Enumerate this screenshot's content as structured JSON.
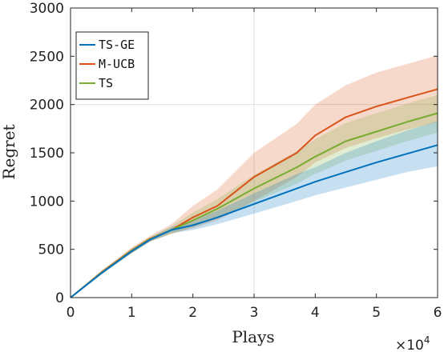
{
  "chart_data": {
    "type": "line",
    "xlabel": "Plays",
    "ylabel": "Regret",
    "x_multiplier": "×10",
    "x_multiplier_exp": "4",
    "xlim": [
      0,
      6
    ],
    "ylim": [
      0,
      3000
    ],
    "xticks": [
      0,
      1,
      2,
      3,
      4,
      5,
      6
    ],
    "yticks": [
      0,
      500,
      1000,
      1500,
      2000,
      2500,
      3000
    ],
    "grid": "partial",
    "legend_position": "top-left",
    "x": [
      0,
      0.5,
      1,
      1.3,
      1.65,
      2,
      2.4,
      3,
      3.7,
      4,
      4.5,
      5,
      5.5,
      6
    ],
    "series": [
      {
        "name": "TS-GE",
        "color": "#0072BD",
        "values": [
          0,
          250,
          480,
          600,
          700,
          750,
          830,
          970,
          1130,
          1200,
          1300,
          1400,
          1490,
          1580
        ],
        "upper": [
          0,
          260,
          500,
          620,
          730,
          800,
          900,
          1080,
          1280,
          1350,
          1500,
          1620,
          1730,
          1830
        ],
        "lower": [
          0,
          240,
          460,
          580,
          670,
          700,
          760,
          870,
          1000,
          1060,
          1140,
          1220,
          1300,
          1360
        ]
      },
      {
        "name": "M-UCB",
        "color": "#D95319",
        "values": [
          0,
          260,
          490,
          610,
          700,
          830,
          950,
          1250,
          1500,
          1680,
          1870,
          1980,
          2070,
          2160
        ],
        "upper": [
          0,
          275,
          520,
          640,
          760,
          950,
          1120,
          1500,
          1800,
          2000,
          2200,
          2330,
          2420,
          2510
        ],
        "lower": [
          0,
          245,
          460,
          580,
          660,
          720,
          800,
          1000,
          1250,
          1400,
          1550,
          1650,
          1740,
          1820
        ]
      },
      {
        "name": "TS",
        "color": "#77AC30",
        "values": [
          0,
          255,
          485,
          605,
          700,
          800,
          920,
          1130,
          1350,
          1460,
          1620,
          1720,
          1820,
          1910
        ],
        "upper": [
          0,
          270,
          510,
          630,
          740,
          880,
          1020,
          1270,
          1520,
          1640,
          1810,
          1910,
          2010,
          2100
        ],
        "lower": [
          0,
          240,
          460,
          580,
          660,
          730,
          820,
          990,
          1180,
          1280,
          1420,
          1520,
          1620,
          1710
        ]
      }
    ]
  }
}
